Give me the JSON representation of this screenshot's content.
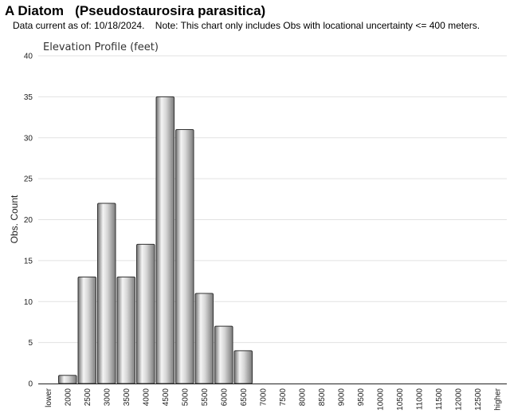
{
  "header": {
    "title": "A Diatom   (Pseudostaurosira parasitica)",
    "subtitle": "Data current as of: 10/18/2024.    Note: This chart only includes Obs with locational uncertainty <= 400 meters."
  },
  "chart_data": {
    "type": "bar",
    "title": "Elevation Profile (feet)",
    "xlabel": "",
    "ylabel": "Obs. Count",
    "ylim": [
      0,
      40
    ],
    "yticks": [
      0,
      5,
      10,
      15,
      20,
      25,
      30,
      35,
      40
    ],
    "grid": true,
    "categories": [
      "lower",
      "2000",
      "2500",
      "3000",
      "3500",
      "4000",
      "4500",
      "5000",
      "5500",
      "6000",
      "6500",
      "7000",
      "7500",
      "8000",
      "8500",
      "9000",
      "9500",
      "10000",
      "10500",
      "11000",
      "11500",
      "12000",
      "12500",
      "higher"
    ],
    "values": [
      0,
      1,
      13,
      22,
      13,
      17,
      35,
      31,
      11,
      7,
      4,
      0,
      0,
      0,
      0,
      0,
      0,
      0,
      0,
      0,
      0,
      0,
      0,
      0
    ],
    "bar_color": "#b8b8b8"
  }
}
